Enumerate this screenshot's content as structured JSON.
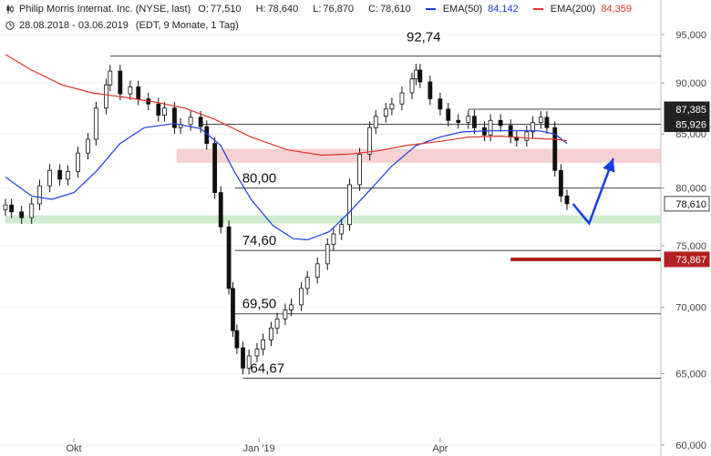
{
  "header": {
    "title": "Philip Morris Internat. Inc. (NYSE, last)",
    "ohlc": [
      {
        "label": "O:",
        "value": "77,510"
      },
      {
        "label": "H:",
        "value": "78,640"
      },
      {
        "label": "L:",
        "value": "76,870"
      },
      {
        "label": "C:",
        "value": "78,610"
      }
    ],
    "ema50_label": "EMA(50)",
    "ema50_value": "84,142",
    "ema200_label": "EMA(200)",
    "ema200_value": "84,359",
    "date_range": "28.08.2018 - 03.06.2019",
    "meta": "(EDT, 9 Monate, 1 Tag)"
  },
  "chart_data": {
    "type": "candlestick",
    "x_range": [
      "2018-08-28",
      "2019-06-03"
    ],
    "ylim": [
      60,
      97.5
    ],
    "scale": "log",
    "y_ticks": [
      {
        "value": 95,
        "label": "95,000"
      },
      {
        "value": 90,
        "label": "90,000"
      },
      {
        "value": 85,
        "label": "85,000"
      },
      {
        "value": 80,
        "label": "80,000"
      },
      {
        "value": 75,
        "label": "75,000"
      },
      {
        "value": 70,
        "label": "70,000"
      },
      {
        "value": 65,
        "label": "65,000"
      },
      {
        "value": 60,
        "label": "60,000"
      }
    ],
    "x_ticks": [
      {
        "date": "2018-10-01",
        "label": "Okt"
      },
      {
        "date": "2019-01-01",
        "label": "Jan '19"
      },
      {
        "date": "2019-04-01",
        "label": "Apr"
      }
    ],
    "price_tags": [
      {
        "value": 87.385,
        "label": "87,385",
        "color": "#222222"
      },
      {
        "value": 85.926,
        "label": "85,926",
        "color": "#222222"
      },
      {
        "value": 78.61,
        "label": "78,610",
        "color": "#ffffff"
      },
      {
        "value": 73.867,
        "label": "73,867",
        "color": "#b22222"
      }
    ],
    "horizontal_lines": [
      {
        "value": 92.74,
        "from": "2018-10-19",
        "color": "#444444",
        "label": "92,74"
      },
      {
        "value": 87.385,
        "from": "2019-04-15",
        "color": "#444444"
      },
      {
        "value": 85.926,
        "from": "2018-12-03",
        "color": "#444444"
      },
      {
        "value": 80.0,
        "from": "2018-12-20",
        "color": "#444444",
        "label": "80,00"
      },
      {
        "value": 74.6,
        "from": "2018-12-20",
        "color": "#444444",
        "label": "74,60"
      },
      {
        "value": 69.5,
        "from": "2018-12-20",
        "color": "#444444",
        "label": "69,50"
      },
      {
        "value": 64.67,
        "from": "2018-12-24",
        "color": "#444444",
        "label": "64,67"
      }
    ],
    "zones": [
      {
        "low": 82.3,
        "high": 83.6,
        "from": "2018-11-21",
        "color": "#f4c9c9"
      },
      {
        "low": 76.9,
        "high": 77.6,
        "from": "2018-08-28",
        "color": "#c9e8c9"
      }
    ],
    "target_line": {
      "value": 73.867,
      "from": "2019-05-06",
      "to": "2019-07-05",
      "color": "#b22222"
    },
    "projection_arrow": {
      "points": [
        [
          "2019-06-06",
          78.6
        ],
        [
          "2019-06-14",
          76.9
        ],
        [
          "2019-06-26",
          82.7
        ]
      ],
      "color": "#1a3ce8"
    },
    "candles_summary": {
      "last": {
        "date": "2019-06-03",
        "open": 77.51,
        "high": 78.64,
        "low": 76.87,
        "close": 78.61
      },
      "high_2018": {
        "date": "2018-10-19",
        "value": 92.74
      },
      "low_2018": {
        "date": "2018-12-27",
        "value": 64.67
      },
      "high_2019": {
        "date": "2019-03-20",
        "value": 92.74
      }
    },
    "close_series": [
      [
        "2018-08-28",
        78.5
      ],
      [
        "2018-08-31",
        77.9
      ],
      [
        "2018-09-05",
        77.4
      ],
      [
        "2018-09-10",
        78.6
      ],
      [
        "2018-09-14",
        80.2
      ],
      [
        "2018-09-19",
        81.6
      ],
      [
        "2018-09-24",
        80.8
      ],
      [
        "2018-09-28",
        81.5
      ],
      [
        "2018-10-03",
        83.2
      ],
      [
        "2018-10-08",
        84.5
      ],
      [
        "2018-10-12",
        87.5
      ],
      [
        "2018-10-17",
        89.8
      ],
      [
        "2018-10-19",
        91.2
      ],
      [
        "2018-10-24",
        88.9
      ],
      [
        "2018-10-29",
        89.6
      ],
      [
        "2018-11-02",
        88.4
      ],
      [
        "2018-11-07",
        87.9
      ],
      [
        "2018-11-12",
        86.8
      ],
      [
        "2018-11-15",
        87.5
      ],
      [
        "2018-11-20",
        85.6
      ],
      [
        "2018-11-23",
        85.9
      ],
      [
        "2018-11-28",
        86.6
      ],
      [
        "2018-12-03",
        85.7
      ],
      [
        "2018-12-06",
        84.1
      ],
      [
        "2018-12-10",
        79.6
      ],
      [
        "2018-12-13",
        76.6
      ],
      [
        "2018-12-17",
        71.5
      ],
      [
        "2018-12-19",
        68.2
      ],
      [
        "2018-12-21",
        66.9
      ],
      [
        "2018-12-24",
        65.4
      ],
      [
        "2018-12-27",
        66.3
      ],
      [
        "2018-12-31",
        66.8
      ],
      [
        "2019-01-03",
        67.5
      ],
      [
        "2019-01-07",
        68.4
      ],
      [
        "2019-01-10",
        69.1
      ],
      [
        "2019-01-14",
        69.8
      ],
      [
        "2019-01-17",
        70.2
      ],
      [
        "2019-01-22",
        71.5
      ],
      [
        "2019-01-25",
        72.4
      ],
      [
        "2019-01-30",
        73.5
      ],
      [
        "2019-02-04",
        75.1
      ],
      [
        "2019-02-07",
        76.0
      ],
      [
        "2019-02-11",
        76.8
      ],
      [
        "2019-02-15",
        80.3
      ],
      [
        "2019-02-20",
        83.1
      ],
      [
        "2019-02-25",
        85.6
      ],
      [
        "2019-02-28",
        86.7
      ],
      [
        "2019-03-05",
        87.4
      ],
      [
        "2019-03-08",
        87.9
      ],
      [
        "2019-03-13",
        89.0
      ],
      [
        "2019-03-18",
        90.4
      ],
      [
        "2019-03-20",
        91.3
      ],
      [
        "2019-03-22",
        90.1
      ],
      [
        "2019-03-27",
        88.4
      ],
      [
        "2019-04-01",
        87.4
      ],
      [
        "2019-04-05",
        86.3
      ],
      [
        "2019-04-10",
        86.1
      ],
      [
        "2019-04-15",
        86.7
      ],
      [
        "2019-04-18",
        85.6
      ],
      [
        "2019-04-23",
        84.9
      ],
      [
        "2019-04-26",
        86.3
      ],
      [
        "2019-05-01",
        85.8
      ],
      [
        "2019-05-06",
        84.7
      ],
      [
        "2019-05-09",
        84.4
      ],
      [
        "2019-05-14",
        85.2
      ],
      [
        "2019-05-17",
        86.1
      ],
      [
        "2019-05-21",
        86.6
      ],
      [
        "2019-05-24",
        85.6
      ],
      [
        "2019-05-28",
        81.6
      ],
      [
        "2019-05-31",
        79.3
      ],
      [
        "2019-06-03",
        78.61
      ]
    ],
    "series": [
      {
        "name": "EMA(50)",
        "color": "#1a3ce8",
        "values": [
          [
            "2018-08-28",
            81.0
          ],
          [
            "2018-09-10",
            79.3
          ],
          [
            "2018-09-20",
            79.0
          ],
          [
            "2018-10-01",
            79.6
          ],
          [
            "2018-10-12",
            81.5
          ],
          [
            "2018-10-24",
            84.1
          ],
          [
            "2018-11-05",
            85.6
          ],
          [
            "2018-11-20",
            86.0
          ],
          [
            "2018-12-03",
            85.5
          ],
          [
            "2018-12-13",
            83.9
          ],
          [
            "2018-12-20",
            81.4
          ],
          [
            "2018-12-28",
            79.0
          ],
          [
            "2019-01-08",
            76.7
          ],
          [
            "2019-01-18",
            75.6
          ],
          [
            "2019-01-25",
            75.5
          ],
          [
            "2019-02-05",
            76.2
          ],
          [
            "2019-02-15",
            77.9
          ],
          [
            "2019-02-26",
            80.0
          ],
          [
            "2019-03-08",
            82.0
          ],
          [
            "2019-03-20",
            83.9
          ],
          [
            "2019-04-01",
            84.7
          ],
          [
            "2019-04-12",
            85.2
          ],
          [
            "2019-04-25",
            85.3
          ],
          [
            "2019-05-08",
            85.3
          ],
          [
            "2019-05-20",
            85.3
          ],
          [
            "2019-05-28",
            85.0
          ],
          [
            "2019-06-03",
            84.1
          ]
        ]
      },
      {
        "name": "EMA(200)",
        "color": "#e0332a",
        "values": [
          [
            "2018-08-28",
            92.9
          ],
          [
            "2018-09-10",
            91.3
          ],
          [
            "2018-09-25",
            89.8
          ],
          [
            "2018-10-10",
            89.0
          ],
          [
            "2018-10-25",
            88.6
          ],
          [
            "2018-11-10",
            88.1
          ],
          [
            "2018-11-25",
            87.5
          ],
          [
            "2018-12-10",
            86.4
          ],
          [
            "2018-12-28",
            84.7
          ],
          [
            "2019-01-15",
            83.5
          ],
          [
            "2019-02-01",
            83.0
          ],
          [
            "2019-02-15",
            83.1
          ],
          [
            "2019-03-01",
            83.4
          ],
          [
            "2019-03-15",
            83.9
          ],
          [
            "2019-04-01",
            84.3
          ],
          [
            "2019-04-15",
            84.7
          ],
          [
            "2019-05-01",
            84.8
          ],
          [
            "2019-05-15",
            84.6
          ],
          [
            "2019-05-28",
            84.5
          ],
          [
            "2019-06-03",
            84.36
          ]
        ]
      }
    ]
  }
}
